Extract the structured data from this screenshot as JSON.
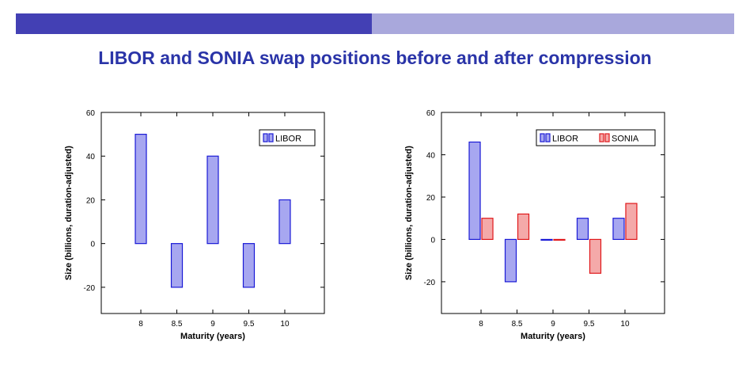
{
  "slide": {
    "title": "LIBOR and SONIA swap positions before and after compression",
    "banner_colors": [
      "#4340b4",
      "#a9a8dc"
    ]
  },
  "chart_data": [
    {
      "type": "bar",
      "categories": [
        "8",
        "8.5",
        "9",
        "9.5",
        "10"
      ],
      "series": [
        {
          "name": "LIBOR",
          "values": [
            50,
            -20,
            40,
            -20,
            20
          ],
          "fill": "#a7a7f0",
          "stroke": "#1a1ad6"
        }
      ],
      "xlabel": "Maturity (years)",
      "ylabel": "Size (billions, duration-adjusted)",
      "ylim": [
        -32,
        60
      ],
      "yticks": [
        -20,
        0,
        20,
        40,
        60
      ],
      "legend": "top-right",
      "grid": false
    },
    {
      "type": "bar",
      "categories": [
        "8",
        "8.5",
        "9",
        "9.5",
        "10"
      ],
      "series": [
        {
          "name": "LIBOR",
          "values": [
            46,
            -20,
            0,
            10,
            10
          ],
          "fill": "#a7a7f0",
          "stroke": "#1a1ad6"
        },
        {
          "name": "SONIA",
          "values": [
            10,
            12,
            0,
            -16,
            17
          ],
          "fill": "#f4a9a9",
          "stroke": "#e0181b"
        }
      ],
      "xlabel": "Maturity (years)",
      "ylabel": "Size (billions, duration-adjusted)",
      "ylim": [
        -35,
        60
      ],
      "yticks": [
        -20,
        0,
        20,
        40,
        60
      ],
      "legend": "top-right",
      "grid": false
    }
  ]
}
